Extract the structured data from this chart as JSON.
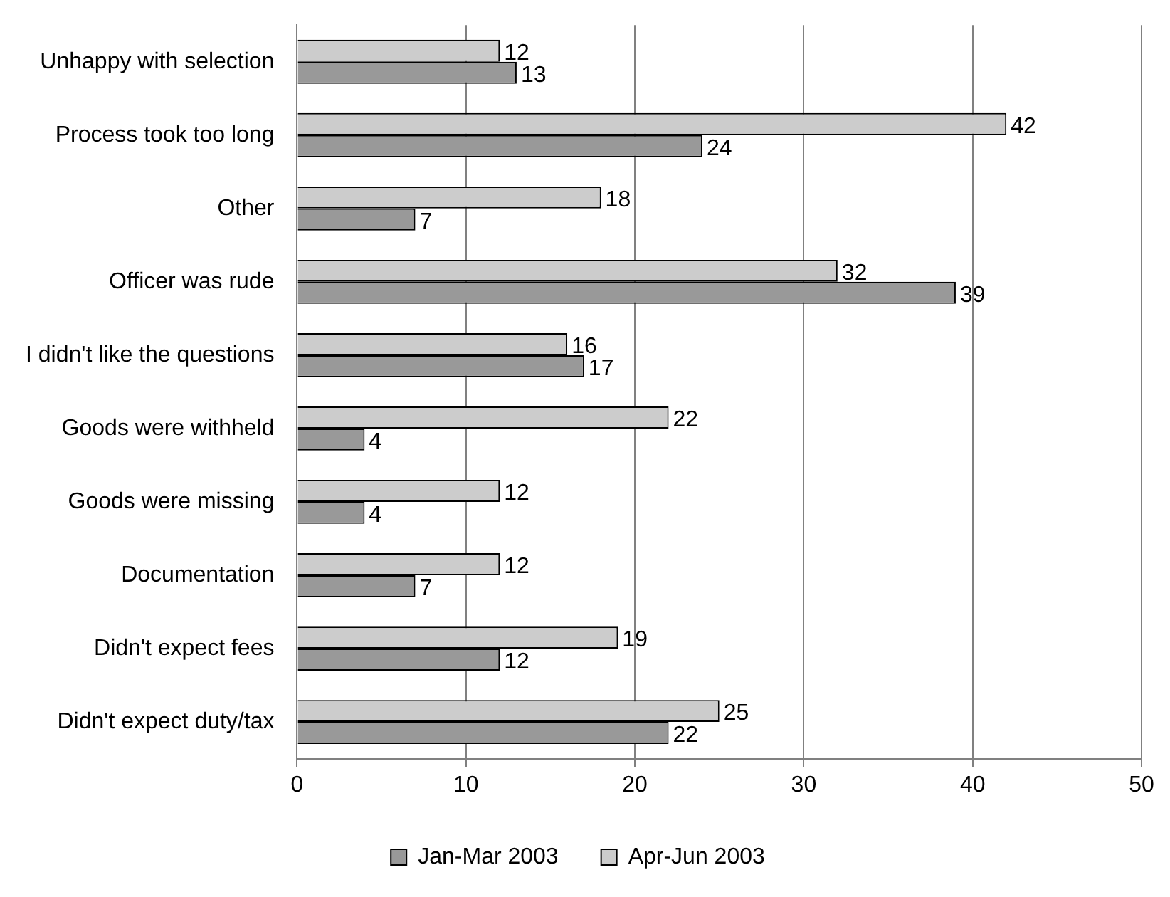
{
  "chart_data": {
    "type": "bar",
    "orientation": "horizontal",
    "categories": [
      "Unhappy with selection",
      "Process took too long",
      "Other",
      "Officer was rude",
      "I didn't like the questions",
      "Goods were withheld",
      "Goods were missing",
      "Documentation",
      "Didn't expect fees",
      "Didn't expect duty/tax"
    ],
    "series": [
      {
        "name": "Jan-Mar 2003",
        "color": "#999999",
        "values": [
          13,
          24,
          7,
          39,
          17,
          4,
          4,
          7,
          12,
          22
        ]
      },
      {
        "name": "Apr-Jun 2003",
        "color": "#cccccc",
        "values": [
          12,
          42,
          18,
          32,
          16,
          22,
          12,
          12,
          19,
          25
        ]
      }
    ],
    "xlim": [
      0,
      50
    ],
    "xticks": [
      0,
      10,
      20,
      30,
      40,
      50
    ],
    "grid": "x",
    "legend": "bottom",
    "data_labels": true
  }
}
